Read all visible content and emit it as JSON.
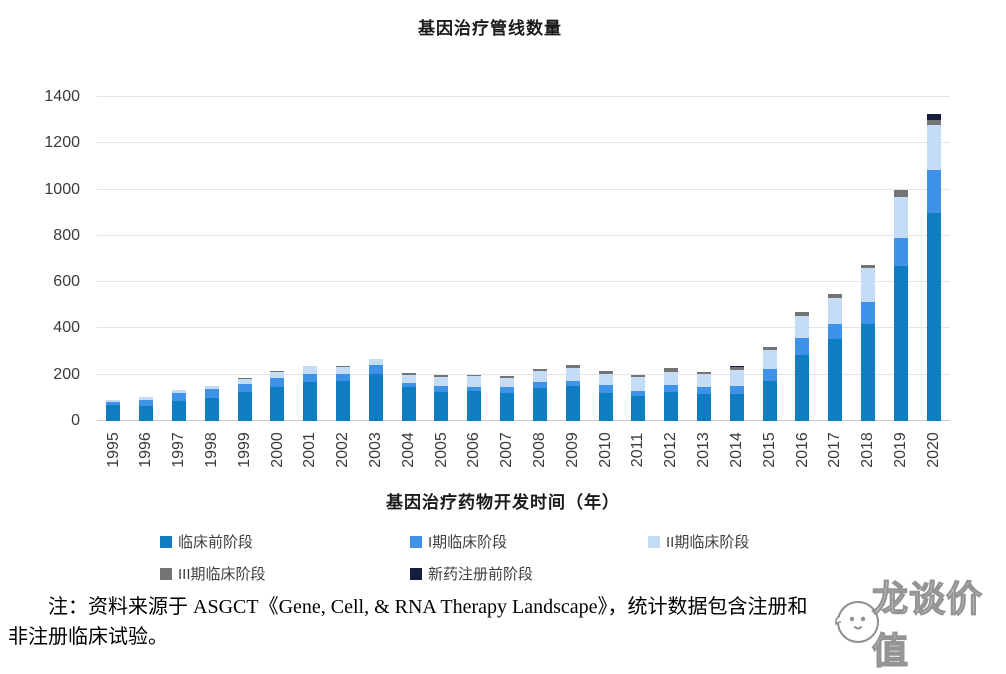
{
  "title": "基因治疗管线数量",
  "x_axis_title": "基因治疗药物开发时间（年）",
  "note": {
    "line1": "注：资料来源于 ASGCT《Gene, Cell, & RNA Therapy Landscape》，统计数据包含注册和",
    "line2": "非注册临床试验。"
  },
  "watermark": {
    "text": "龙谈价值"
  },
  "colors": {
    "preclinical": "#0f7dc2",
    "phase1": "#3e92e8",
    "phase2": "#c4dcf5",
    "phase3": "#747474",
    "preregistration": "#161d3d",
    "gridline": "#e4e4e4"
  },
  "chart_data": {
    "type": "bar",
    "stacked": true,
    "title": "基因治疗管线数量",
    "xlabel": "基因治疗药物开发时间（年）",
    "ylabel": "",
    "ylim": [
      0,
      1400
    ],
    "y_ticks": [
      0,
      200,
      400,
      600,
      800,
      1000,
      1200,
      1400
    ],
    "grid": true,
    "legend_position": "bottom",
    "categories": [
      1995,
      1996,
      1997,
      1998,
      1999,
      2000,
      2001,
      2002,
      2003,
      2004,
      2005,
      2006,
      2007,
      2008,
      2009,
      2010,
      2011,
      2012,
      2013,
      2014,
      2015,
      2016,
      2017,
      2018,
      2019,
      2020
    ],
    "series": [
      {
        "name": "临床前阶段",
        "color": "#0f7dc2",
        "values": [
          68,
          65,
          85,
          100,
          125,
          145,
          170,
          175,
          205,
          145,
          125,
          128,
          122,
          142,
          150,
          122,
          110,
          124,
          116,
          115,
          175,
          285,
          355,
          420,
          670,
          900
        ]
      },
      {
        "name": "I期临床阶段",
        "color": "#3e92e8",
        "values": [
          14,
          25,
          35,
          38,
          35,
          40,
          35,
          30,
          35,
          20,
          25,
          20,
          23,
          25,
          22,
          35,
          21,
          30,
          33,
          35,
          50,
          72,
          65,
          95,
          120,
          185
        ]
      },
      {
        "name": "II期临床阶段",
        "color": "#c4dcf5",
        "values": [
          8,
          12,
          12,
          12,
          22,
          28,
          32,
          28,
          27,
          35,
          40,
          45,
          42,
          48,
          58,
          48,
          58,
          60,
          55,
          70,
          80,
          95,
          110,
          145,
          180,
          195
        ]
      },
      {
        "name": "III期临床阶段",
        "color": "#747474",
        "values": [
          0,
          3,
          3,
          3,
          3,
          3,
          3,
          5,
          0,
          8,
          7,
          5,
          6,
          10,
          10,
          12,
          10,
          14,
          10,
          13,
          15,
          18,
          20,
          15,
          28,
          22
        ]
      },
      {
        "name": "新药注册前阶段",
        "color": "#161d3d",
        "values": [
          0,
          0,
          0,
          0,
          0,
          0,
          0,
          0,
          0,
          0,
          0,
          0,
          2,
          0,
          4,
          0,
          0,
          0,
          0,
          3,
          0,
          0,
          0,
          0,
          2,
          25
        ]
      }
    ]
  }
}
